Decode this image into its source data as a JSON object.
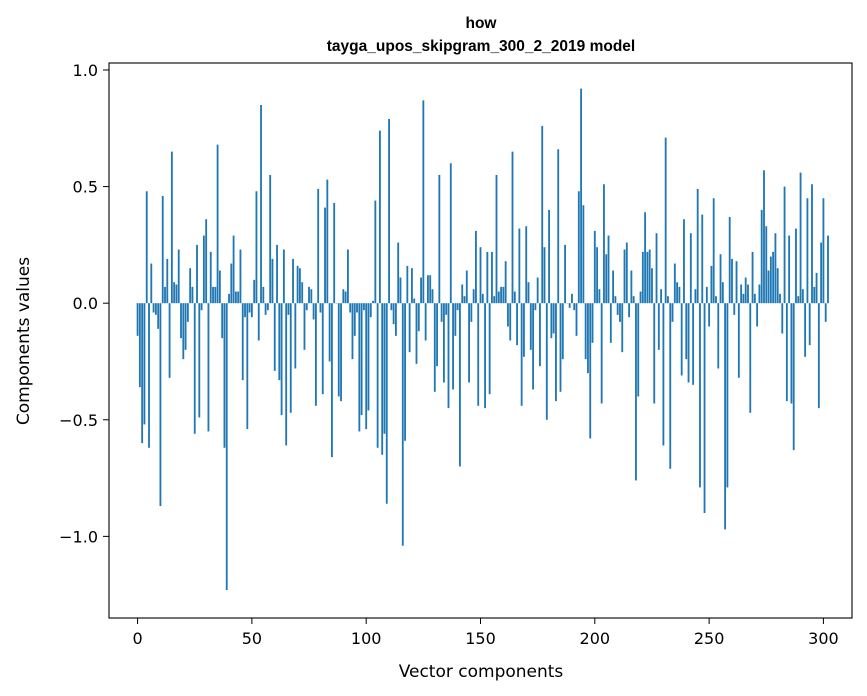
{
  "chart_data": {
    "type": "bar",
    "title": "how",
    "subtitle": "tayga_upos_skipgram_300_2_2019 model",
    "xlabel": "Vector components",
    "ylabel": "Components values",
    "xlim": [
      -12.5,
      312.5
    ],
    "ylim": [
      -1.35,
      1.03
    ],
    "xticks": [
      0,
      50,
      100,
      150,
      200,
      250,
      300
    ],
    "xtick_labels": [
      "0",
      "50",
      "100",
      "150",
      "200",
      "250",
      "300"
    ],
    "yticks": [
      -1.0,
      -0.5,
      0.0,
      0.5,
      1.0
    ],
    "ytick_labels": [
      "−1.0",
      "−0.5",
      "0.0",
      "0.5",
      "1.0"
    ],
    "grid": false,
    "bar_color": "#1f77b4",
    "values": [
      -0.14,
      -0.36,
      -0.6,
      -0.52,
      0.48,
      -0.62,
      0.17,
      -0.04,
      -0.05,
      -0.11,
      -0.87,
      0.46,
      0.07,
      0.19,
      -0.32,
      0.65,
      0.09,
      0.08,
      0.23,
      -0.15,
      -0.24,
      -0.2,
      -0.08,
      0.15,
      0.07,
      -0.56,
      0.25,
      -0.49,
      -0.03,
      0.29,
      0.36,
      -0.55,
      0.22,
      0.07,
      0.07,
      0.68,
      0.14,
      -0.15,
      -0.62,
      -1.23,
      0.04,
      0.17,
      0.29,
      0.05,
      0.05,
      0.23,
      -0.33,
      -0.06,
      -0.54,
      -0.04,
      -0.06,
      0.1,
      0.48,
      -0.16,
      0.85,
      0.07,
      -0.05,
      -0.03,
      0.55,
      0.19,
      -0.29,
      0.25,
      -0.33,
      -0.48,
      0.23,
      -0.61,
      -0.05,
      -0.47,
      0.19,
      -0.28,
      0.16,
      0.15,
      0.09,
      -0.2,
      -0.03,
      0.07,
      0.06,
      -0.07,
      -0.44,
      0.49,
      -0.04,
      -0.39,
      0.41,
      0.53,
      -0.25,
      -0.66,
      0.43,
      0.0,
      -0.4,
      -0.42,
      0.06,
      0.05,
      0.23,
      -0.04,
      -0.24,
      -0.14,
      -0.04,
      -0.55,
      -0.48,
      -0.03,
      -0.54,
      -0.46,
      -0.06,
      0.01,
      0.44,
      -0.62,
      0.74,
      -0.65,
      -0.56,
      -0.86,
      0.79,
      -0.03,
      -0.09,
      -0.14,
      0.26,
      0.11,
      -1.04,
      -0.59,
      0.16,
      -0.21,
      0.15,
      0.02,
      -0.26,
      -0.12,
      0.11,
      0.87,
      -0.16,
      0.12,
      0.12,
      0.06,
      -0.38,
      -0.27,
      0.55,
      -0.08,
      -0.34,
      -0.05,
      -0.45,
      0.6,
      -0.37,
      -0.14,
      -0.03,
      -0.7,
      0.08,
      0.03,
      0.14,
      -0.34,
      -0.08,
      0.06,
      0.31,
      -0.44,
      0.24,
      0.04,
      -0.45,
      0.22,
      -0.39,
      0.22,
      0.03,
      0.55,
      0.05,
      0.07,
      0.07,
      0.18,
      -0.1,
      -0.16,
      0.65,
      0.05,
      -0.18,
      0.32,
      -0.44,
      -0.23,
      0.33,
      0.09,
      -0.2,
      -0.37,
      -0.03,
      0.11,
      -0.27,
      0.76,
      0.24,
      -0.5,
      0.4,
      -0.15,
      -0.13,
      -0.42,
      0.66,
      -0.38,
      -0.24,
      0.25,
      0.0,
      -0.02,
      0.04,
      -0.03,
      -0.14,
      0.48,
      0.92,
      0.42,
      -0.24,
      -0.3,
      -0.58,
      -0.17,
      0.31,
      0.24,
      0.06,
      -0.43,
      0.51,
      0.21,
      0.29,
      -0.17,
      0.14,
      0.03,
      -0.05,
      -0.08,
      -0.21,
      0.23,
      0.26,
      -0.06,
      0.14,
      0.03,
      -0.76,
      -0.4,
      0.05,
      0.22,
      0.39,
      0.22,
      0.23,
      0.15,
      -0.43,
      0.3,
      -0.2,
      0.06,
      -0.61,
      0.71,
      0.03,
      -0.71,
      -0.08,
      0.17,
      0.09,
      0.07,
      -0.31,
      0.36,
      -0.24,
      -0.34,
      0.3,
      -0.35,
      0.06,
      0.49,
      -0.79,
      0.38,
      -0.9,
      0.07,
      -0.1,
      0.16,
      0.45,
      0.03,
      -0.28,
      0.21,
      0.09,
      -0.97,
      -0.79,
      0.37,
      0.19,
      -0.05,
      0.18,
      -0.32,
      0.08,
      0.04,
      0.11,
      0.08,
      -0.47,
      0.22,
      0.04,
      -0.1,
      0.08,
      0.4,
      0.57,
      0.33,
      0.14,
      0.2,
      0.22,
      0.3,
      0.15,
      0.04,
      -0.13,
      0.5,
      -0.42,
      0.29,
      -0.43,
      -0.63,
      0.32,
      0.03,
      0.56,
      0.06,
      -0.23,
      0.45,
      -0.18,
      0.51,
      0.07,
      0.13,
      -0.45,
      0.26,
      0.45,
      -0.08,
      0.29
    ]
  }
}
